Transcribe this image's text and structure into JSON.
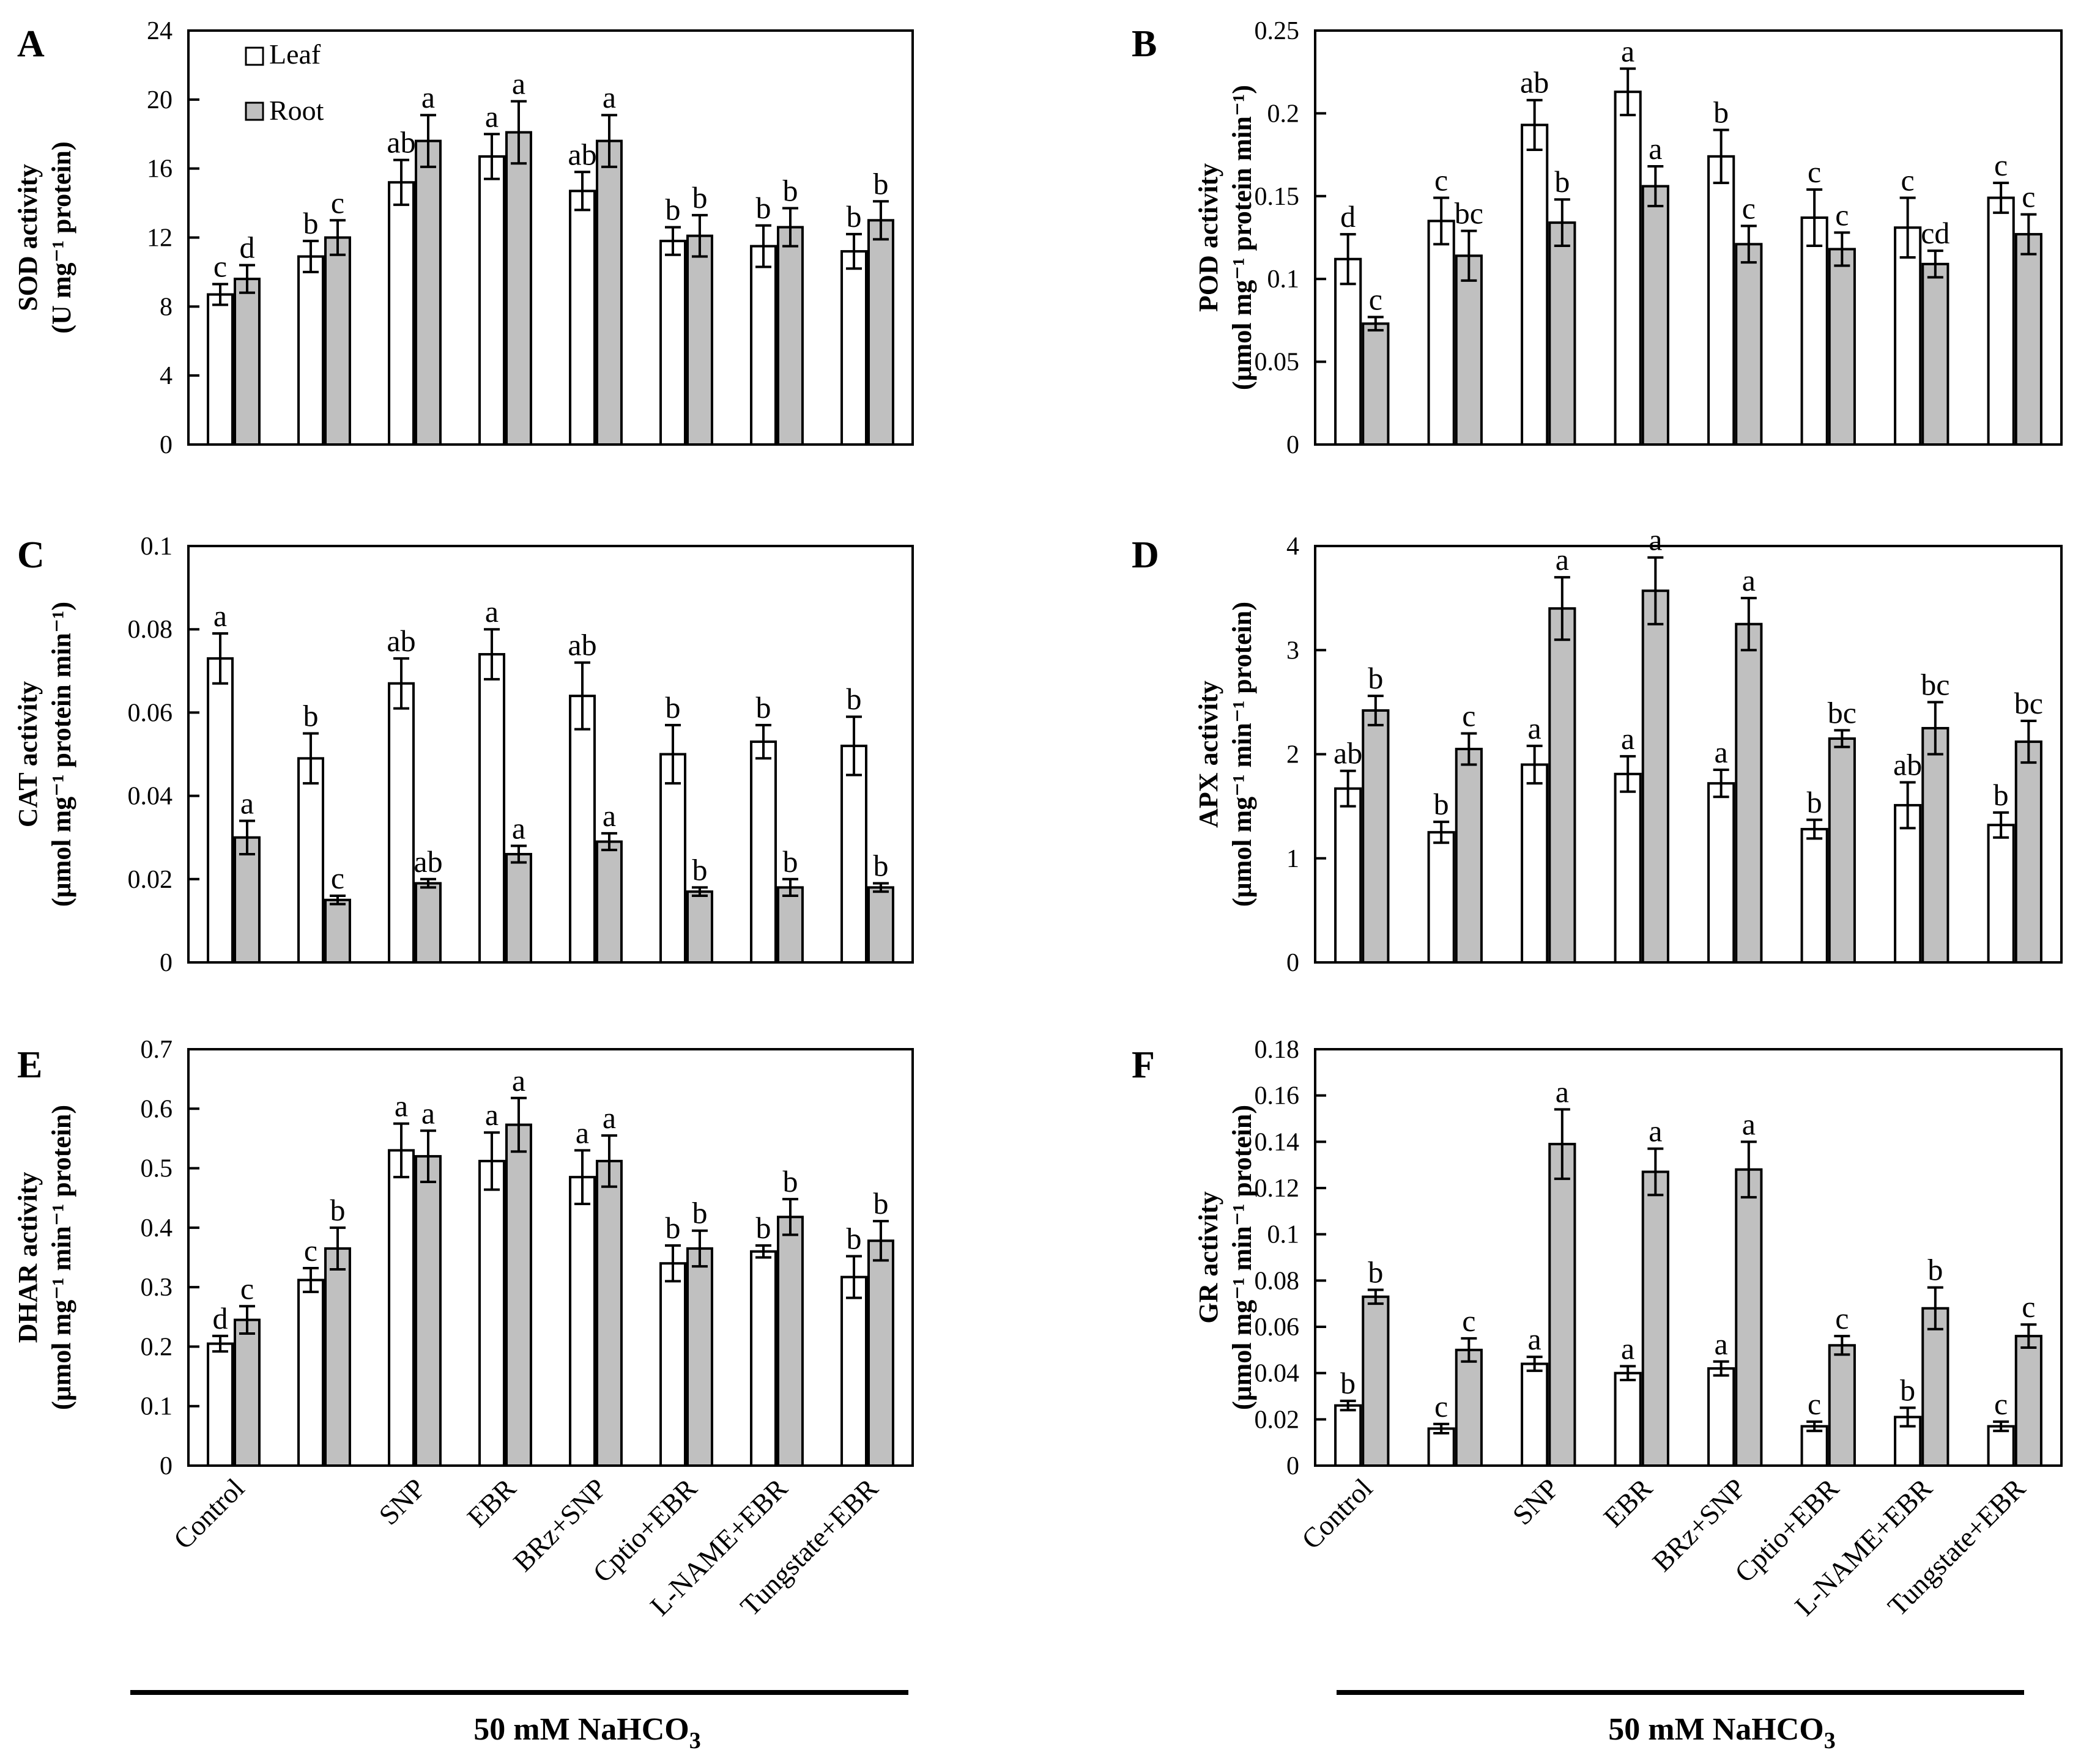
{
  "legend": {
    "leaf": "Leaf",
    "root": "Root"
  },
  "colors": {
    "leaf_fill": "#ffffff",
    "root_fill": "#c0c0c0",
    "stroke": "#000000"
  },
  "group_label": "50 mM NaHCO",
  "group_label_subscript": "3",
  "chart_data": [
    {
      "panel": "A",
      "type": "bar",
      "ylabel_line1": "SOD activity",
      "ylabel_line2": "(U mg⁻¹ protein)",
      "categories": [
        "Control",
        "",
        "SNP",
        "EBR",
        "BRz+SNP",
        "Cptio+EBR",
        "L-NAME+EBR",
        "Tungstate+EBR"
      ],
      "ylim": [
        0,
        24
      ],
      "yticks": [
        "0",
        "4",
        "8",
        "12",
        "16",
        "20",
        "24"
      ],
      "series": [
        {
          "name": "Leaf",
          "values": [
            8.7,
            10.9,
            15.2,
            16.7,
            14.7,
            11.8,
            11.5,
            11.2
          ],
          "errors": [
            0.6,
            0.9,
            1.3,
            1.3,
            1.1,
            0.8,
            1.2,
            1.0
          ],
          "labels": [
            "c",
            "b",
            "ab",
            "a",
            "ab",
            "b",
            "b",
            "b"
          ]
        },
        {
          "name": "Root",
          "values": [
            9.6,
            12.0,
            17.6,
            18.1,
            17.6,
            12.1,
            12.6,
            13.0
          ],
          "errors": [
            0.8,
            1.0,
            1.5,
            1.8,
            1.5,
            1.2,
            1.1,
            1.1
          ],
          "labels": [
            "d",
            "c",
            "a",
            "a",
            "a",
            "b",
            "b",
            "b"
          ]
        }
      ]
    },
    {
      "panel": "B",
      "type": "bar",
      "ylabel_line1": "POD activity",
      "ylabel_line2": "(μmol mg⁻¹ protein min⁻¹)",
      "categories": [
        "Control",
        "",
        "SNP",
        "EBR",
        "BRz+SNP",
        "Cptio+EBR",
        "L-NAME+EBR",
        "Tungstate+EBR"
      ],
      "ylim": [
        0,
        0.25
      ],
      "yticks": [
        "0",
        "0.05",
        "0.1",
        "0.15",
        "0.2",
        "0.25"
      ],
      "series": [
        {
          "name": "Leaf",
          "values": [
            0.112,
            0.135,
            0.193,
            0.213,
            0.174,
            0.137,
            0.131,
            0.149
          ],
          "errors": [
            0.015,
            0.014,
            0.015,
            0.014,
            0.016,
            0.017,
            0.018,
            0.009
          ],
          "labels": [
            "d",
            "c",
            "ab",
            "a",
            "b",
            "c",
            "c",
            "c"
          ]
        },
        {
          "name": "Root",
          "values": [
            0.073,
            0.114,
            0.134,
            0.156,
            0.121,
            0.118,
            0.109,
            0.127
          ],
          "errors": [
            0.004,
            0.015,
            0.014,
            0.012,
            0.011,
            0.01,
            0.008,
            0.012
          ],
          "labels": [
            "c",
            "bc",
            "b",
            "a",
            "c",
            "c",
            "cd",
            "c"
          ]
        }
      ]
    },
    {
      "panel": "C",
      "type": "bar",
      "ylabel_line1": "CAT activity",
      "ylabel_line2": "(μmol mg⁻¹ protein min⁻¹)",
      "categories": [
        "Control",
        "",
        "SNP",
        "EBR",
        "BRz+SNP",
        "Cptio+EBR",
        "L-NAME+EBR",
        "Tungstate+EBR"
      ],
      "ylim": [
        0,
        0.1
      ],
      "yticks": [
        "0",
        "0.02",
        "0.04",
        "0.06",
        "0.08",
        "0.1"
      ],
      "series": [
        {
          "name": "Leaf",
          "values": [
            0.073,
            0.049,
            0.067,
            0.074,
            0.064,
            0.05,
            0.053,
            0.052
          ],
          "errors": [
            0.006,
            0.006,
            0.006,
            0.006,
            0.008,
            0.007,
            0.004,
            0.007
          ],
          "labels": [
            "a",
            "b",
            "ab",
            "a",
            "ab",
            "b",
            "b",
            "b"
          ]
        },
        {
          "name": "Root",
          "values": [
            0.03,
            0.015,
            0.019,
            0.026,
            0.029,
            0.017,
            0.018,
            0.018
          ],
          "errors": [
            0.004,
            0.001,
            0.001,
            0.002,
            0.002,
            0.001,
            0.002,
            0.001
          ],
          "labels": [
            "a",
            "c",
            "ab",
            "a",
            "a",
            "b",
            "b",
            "b"
          ]
        }
      ]
    },
    {
      "panel": "D",
      "type": "bar",
      "ylabel_line1": "APX activity",
      "ylabel_line2": "(μmol mg⁻¹ min⁻¹ protein)",
      "categories": [
        "Control",
        "",
        "SNP",
        "EBR",
        "BRz+SNP",
        "Cptio+EBR",
        "L-NAME+EBR",
        "Tungstate+EBR"
      ],
      "ylim": [
        0,
        4
      ],
      "yticks": [
        "0",
        "1",
        "2",
        "3",
        "4"
      ],
      "series": [
        {
          "name": "Leaf",
          "values": [
            1.67,
            1.25,
            1.9,
            1.81,
            1.72,
            1.28,
            1.51,
            1.32
          ],
          "errors": [
            0.17,
            0.1,
            0.18,
            0.17,
            0.13,
            0.09,
            0.22,
            0.12
          ],
          "labels": [
            "ab",
            "b",
            "a",
            "a",
            "a",
            "b",
            "ab",
            "b"
          ]
        },
        {
          "name": "Root",
          "values": [
            2.42,
            2.05,
            3.4,
            3.57,
            3.25,
            2.15,
            2.25,
            2.12
          ],
          "errors": [
            0.14,
            0.15,
            0.3,
            0.32,
            0.25,
            0.08,
            0.25,
            0.2
          ],
          "labels": [
            "b",
            "c",
            "a",
            "a",
            "a",
            "bc",
            "bc",
            "bc"
          ]
        }
      ]
    },
    {
      "panel": "E",
      "type": "bar",
      "ylabel_line1": "DHAR activity",
      "ylabel_line2": "(μmol mg⁻¹ min⁻¹ protein)",
      "categories": [
        "Control",
        "",
        "SNP",
        "EBR",
        "BRz+SNP",
        "Cptio+EBR",
        "L-NAME+EBR",
        "Tungstate+EBR"
      ],
      "ylim": [
        0,
        0.7
      ],
      "yticks": [
        "0",
        "0.1",
        "0.2",
        "0.3",
        "0.4",
        "0.5",
        "0.6",
        "0.7"
      ],
      "series": [
        {
          "name": "Leaf",
          "values": [
            0.205,
            0.312,
            0.53,
            0.512,
            0.485,
            0.34,
            0.36,
            0.317
          ],
          "errors": [
            0.013,
            0.02,
            0.045,
            0.048,
            0.045,
            0.03,
            0.01,
            0.035
          ],
          "labels": [
            "d",
            "c",
            "a",
            "a",
            "a",
            "b",
            "b",
            "b"
          ]
        },
        {
          "name": "Root",
          "values": [
            0.245,
            0.365,
            0.52,
            0.573,
            0.512,
            0.365,
            0.418,
            0.378
          ],
          "errors": [
            0.023,
            0.035,
            0.043,
            0.045,
            0.043,
            0.03,
            0.03,
            0.033
          ],
          "labels": [
            "c",
            "b",
            "a",
            "a",
            "a",
            "b",
            "b",
            "b"
          ]
        }
      ]
    },
    {
      "panel": "F",
      "type": "bar",
      "ylabel_line1": "GR activity",
      "ylabel_line2": "(μmol mg⁻¹ min⁻¹ protein)",
      "categories": [
        "Control",
        "",
        "SNP",
        "EBR",
        "BRz+SNP",
        "Cptio+EBR",
        "L-NAME+EBR",
        "Tungstate+EBR"
      ],
      "ylim": [
        0,
        0.18
      ],
      "yticks": [
        "0",
        "0.02",
        "0.04",
        "0.06",
        "0.08",
        "0.1",
        "0.12",
        "0.14",
        "0.16",
        "0.18"
      ],
      "series": [
        {
          "name": "Leaf",
          "values": [
            0.026,
            0.016,
            0.044,
            0.04,
            0.042,
            0.017,
            0.021,
            0.017
          ],
          "errors": [
            0.002,
            0.002,
            0.003,
            0.003,
            0.003,
            0.002,
            0.004,
            0.002
          ],
          "labels": [
            "b",
            "c",
            "a",
            "a",
            "a",
            "c",
            "b",
            "c"
          ]
        },
        {
          "name": "Root",
          "values": [
            0.073,
            0.05,
            0.139,
            0.127,
            0.128,
            0.052,
            0.068,
            0.056
          ],
          "errors": [
            0.003,
            0.005,
            0.015,
            0.01,
            0.012,
            0.004,
            0.009,
            0.005
          ],
          "labels": [
            "b",
            "c",
            "a",
            "a",
            "a",
            "c",
            "b",
            "c"
          ]
        }
      ]
    }
  ]
}
